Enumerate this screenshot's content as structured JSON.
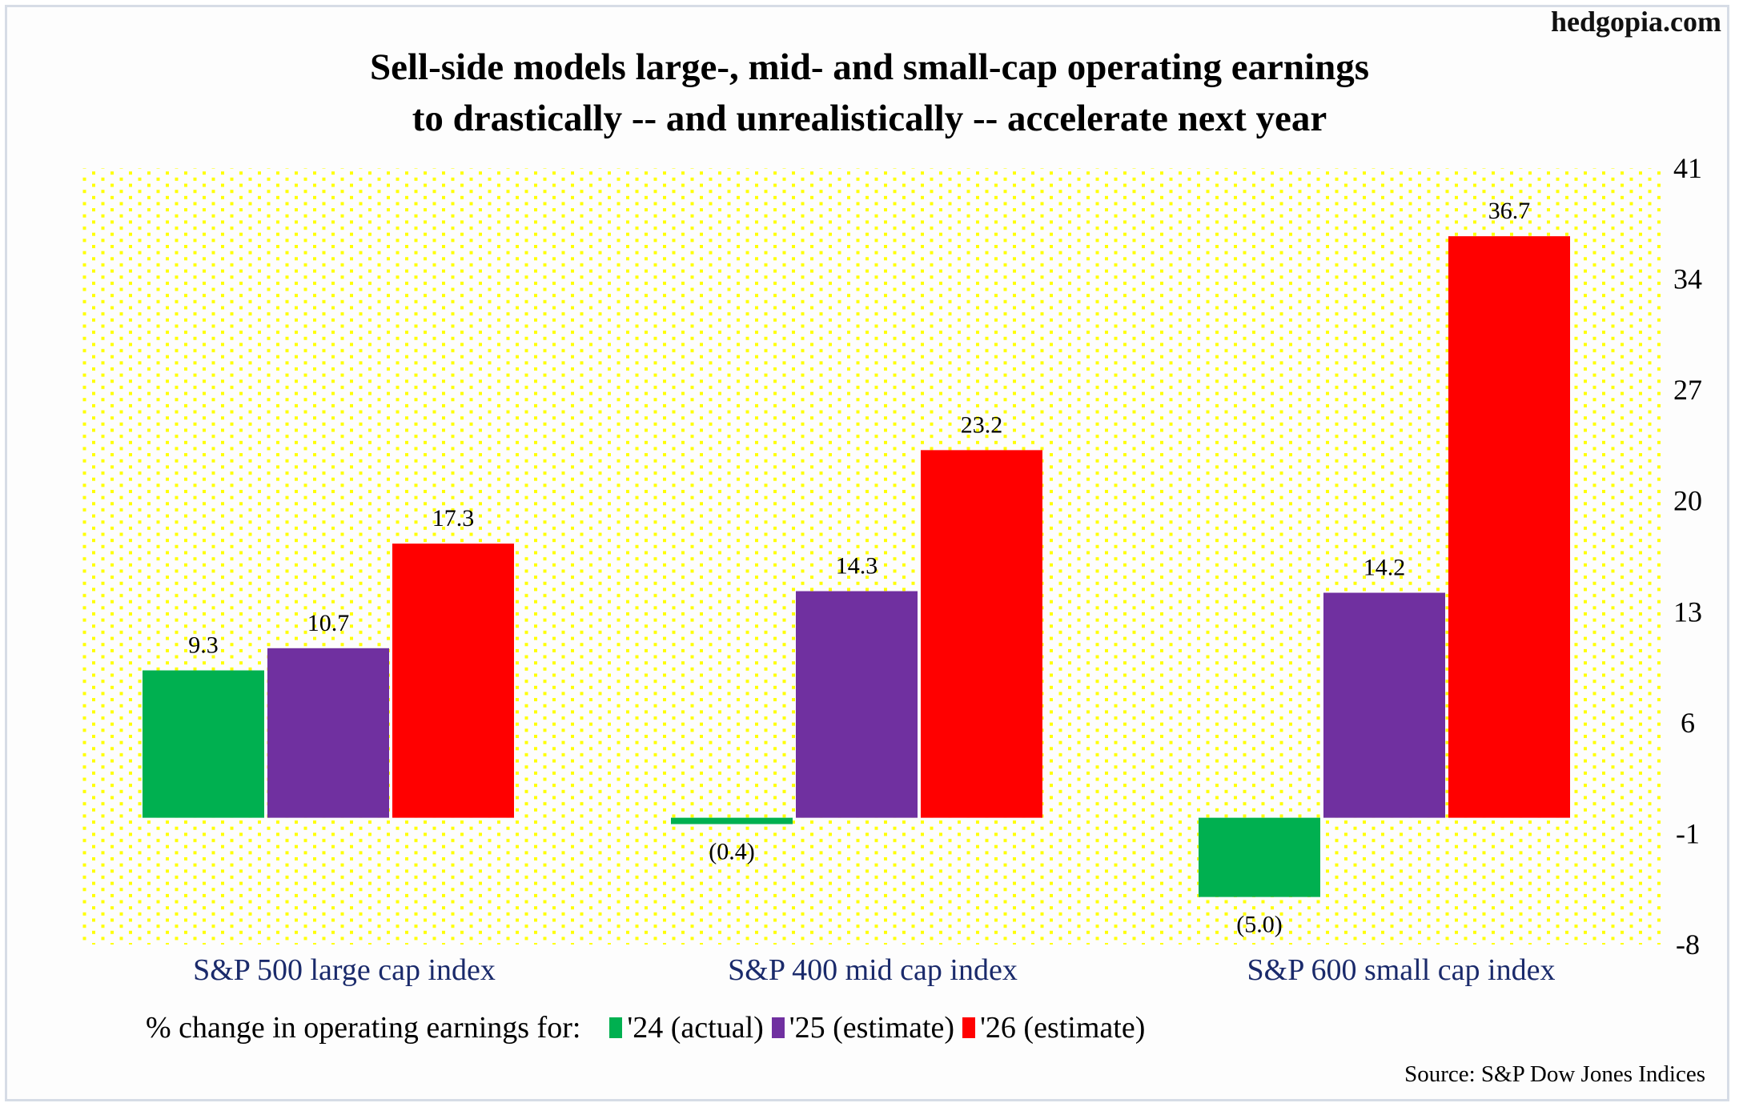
{
  "brand": "hedgopia.com",
  "chart_data": {
    "type": "bar",
    "title": "Sell-side models large-, mid- and small-cap operating earnings to drastically -- and unrealistically -- accelerate next year",
    "title_lines": [
      "Sell-side models large-, mid- and small-cap operating earnings",
      "to drastically -- and unrealistically -- accelerate next year"
    ],
    "categories": [
      "S&P 500 large cap index",
      "S&P 400 mid cap index",
      "S&P 600 small cap index"
    ],
    "series": [
      {
        "name": "'24 (actual)",
        "color": "#00b050",
        "values": [
          9.3,
          -0.4,
          -5.0
        ],
        "labels": [
          "9.3",
          "(0.4)",
          "(5.0)"
        ]
      },
      {
        "name": "'25 (estimate)",
        "color": "#7030a0",
        "values": [
          10.7,
          14.3,
          14.2
        ],
        "labels": [
          "10.7",
          "14.3",
          "14.2"
        ]
      },
      {
        "name": "'26 (estimate)",
        "color": "#ff0000",
        "values": [
          17.3,
          23.2,
          36.7
        ],
        "labels": [
          "17.3",
          "23.2",
          "36.7"
        ]
      }
    ],
    "xlabel": "",
    "ylabel": "",
    "ylim": [
      -8,
      41
    ],
    "yticks": [
      41,
      34,
      27,
      20,
      13,
      6,
      -1,
      -8
    ],
    "y_axis_side": "right",
    "grid": false,
    "background": "yellow dotted pattern",
    "legend_title": "% change in operating earnings for:",
    "legend_position": "bottom",
    "source": "Source: S&P Dow Jones Indices"
  }
}
